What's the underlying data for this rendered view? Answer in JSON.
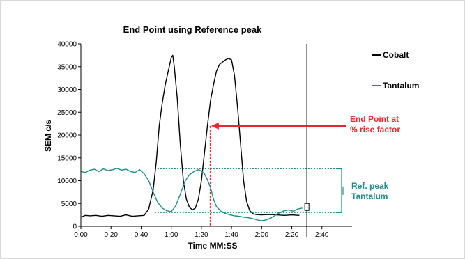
{
  "chart_data": {
    "type": "line",
    "title": "End Point using Reference peak",
    "xlabel": "Time MM:SS",
    "ylabel": "SEM  c/s",
    "xlim": [
      0,
      180
    ],
    "ylim": [
      0,
      40000
    ],
    "x_ticks": [
      {
        "value": 0,
        "label": "0:00"
      },
      {
        "value": 20,
        "label": "0:20"
      },
      {
        "value": 40,
        "label": "0:40"
      },
      {
        "value": 60,
        "label": "1:00"
      },
      {
        "value": 80,
        "label": "1:20"
      },
      {
        "value": 100,
        "label": "1:40"
      },
      {
        "value": 120,
        "label": "2:00"
      },
      {
        "value": 140,
        "label": "2:20"
      },
      {
        "value": 160,
        "label": "2:40"
      }
    ],
    "y_ticks": [
      0,
      5000,
      10000,
      15000,
      20000,
      25000,
      30000,
      35000,
      40000
    ],
    "legend": {
      "placement": "right"
    },
    "series": [
      {
        "name": "Cobalt",
        "color": "#000000",
        "x": [
          0,
          3,
          6,
          10,
          14,
          18,
          22,
          26,
          30,
          34,
          38,
          42,
          45,
          48,
          50,
          52,
          54,
          56,
          58,
          60,
          61,
          62,
          64,
          66,
          68,
          70,
          72,
          74,
          76,
          78,
          80,
          82,
          84,
          86,
          88,
          90,
          92,
          94,
          96,
          98,
          100,
          102,
          104,
          106,
          108,
          110,
          112,
          114,
          116,
          120,
          125,
          130,
          135,
          140,
          145
        ],
        "y": [
          2000,
          2400,
          2300,
          2400,
          2200,
          2400,
          2300,
          2200,
          2500,
          2200,
          2300,
          2400,
          3800,
          8000,
          14000,
          22000,
          27000,
          31000,
          34000,
          37000,
          37500,
          35000,
          28000,
          18000,
          10000,
          6000,
          4200,
          3600,
          4000,
          6000,
          10000,
          16000,
          22000,
          27500,
          31000,
          34000,
          35500,
          36000,
          36500,
          36800,
          36500,
          33000,
          26000,
          18000,
          10000,
          5500,
          3500,
          2800,
          2600,
          2500,
          2600,
          2500,
          2400,
          2500,
          2400
        ]
      },
      {
        "name": "Tantalum",
        "color": "#1f8a8a",
        "x": [
          0,
          3,
          6,
          9,
          12,
          15,
          18,
          21,
          24,
          27,
          30,
          33,
          36,
          39,
          42,
          45,
          48,
          51,
          54,
          57,
          60,
          63,
          66,
          69,
          72,
          75,
          78,
          80,
          82,
          84,
          86,
          88,
          90,
          93,
          96,
          99,
          102,
          105,
          108,
          111,
          114,
          117,
          120,
          123,
          126,
          129,
          132,
          135,
          138,
          141,
          144,
          147
        ],
        "y": [
          12000,
          11800,
          12300,
          12500,
          12000,
          12600,
          12200,
          12400,
          12700,
          12300,
          12500,
          12000,
          11800,
          12400,
          11500,
          10000,
          7500,
          5200,
          4000,
          3400,
          3200,
          4500,
          7000,
          9800,
          11300,
          12000,
          12400,
          12100,
          11500,
          10200,
          8500,
          6000,
          4300,
          3300,
          2800,
          2500,
          2300,
          2200,
          2000,
          1900,
          1700,
          1400,
          1200,
          1400,
          1800,
          2400,
          3000,
          3400,
          3600,
          3300,
          3800,
          4000
        ]
      }
    ],
    "annotations": {
      "end_point_label_line1": "End Point at",
      "end_point_label_line2": "% rise factor",
      "end_point_time": 86,
      "end_point_value": 22000,
      "ref_peak_label_line1": "Ref. peak",
      "ref_peak_label_line2": "Tantalum",
      "ref_peak_upper": 12600,
      "ref_peak_lower": 3000,
      "cursor_time": 150,
      "colors": {
        "end_point": "#e8262e",
        "ref_peak": "#1f8a8a",
        "cursor": "#000000"
      }
    }
  }
}
